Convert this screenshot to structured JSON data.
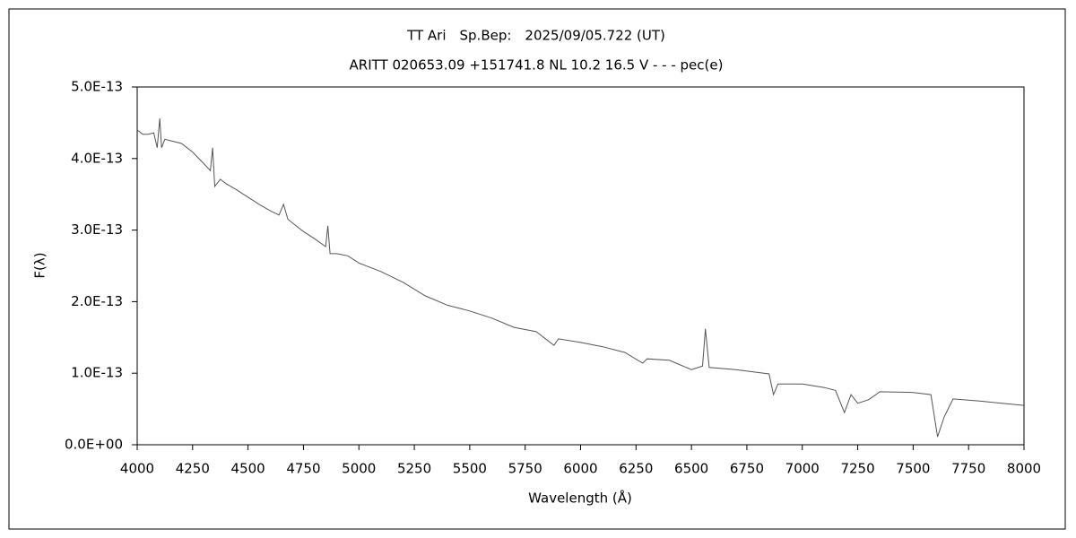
{
  "chart_data": {
    "type": "line",
    "title": "TT Ari　Sp.Bep:　2025/09/05.722 (UT)",
    "subtitle": "ARITT 020653.09 +151741.8 NL 10.2 16.5 V - - - pec(e)",
    "xlabel": "Wavelength (Å)",
    "ylabel": "F(λ)",
    "xlim": [
      4000,
      8000
    ],
    "xticks": [
      4000,
      4250,
      4500,
      4750,
      5000,
      5250,
      5500,
      5750,
      6000,
      6250,
      6500,
      6750,
      7000,
      7250,
      7500,
      7750,
      8000
    ],
    "ylim": [
      0,
      5e-13
    ],
    "yticks": [
      {
        "value": 0,
        "label": "0.0E+00"
      },
      {
        "value": 1e-13,
        "label": "1.0E-13"
      },
      {
        "value": 2e-13,
        "label": "2.0E-13"
      },
      {
        "value": 3e-13,
        "label": "3.0E-13"
      },
      {
        "value": 4e-13,
        "label": "4.0E-13"
      },
      {
        "value": 5e-13,
        "label": "5.0E-13"
      }
    ],
    "grid": false,
    "series": [
      {
        "color": "#555555",
        "x": [
          4000,
          4025,
          4050,
          4075,
          4090,
          4102,
          4110,
          4125,
          4150,
          4200,
          4250,
          4300,
          4330,
          4340,
          4350,
          4375,
          4400,
          4450,
          4500,
          4550,
          4600,
          4640,
          4660,
          4680,
          4750,
          4800,
          4850,
          4860,
          4870,
          4900,
          4950,
          5000,
          5100,
          5200,
          5300,
          5400,
          5500,
          5600,
          5700,
          5800,
          5880,
          5900,
          6000,
          6100,
          6200,
          6280,
          6300,
          6400,
          6500,
          6550,
          6563,
          6580,
          6700,
          6850,
          6870,
          6890,
          7000,
          7100,
          7150,
          7190,
          7220,
          7250,
          7300,
          7350,
          7500,
          7580,
          7610,
          7640,
          7680,
          7800,
          7900,
          8000
        ],
        "values": [
          4.4e-13,
          4.34e-13,
          4.34e-13,
          4.36e-13,
          4.15e-13,
          4.56e-13,
          4.15e-13,
          4.27e-13,
          4.25e-13,
          4.21e-13,
          4.09e-13,
          3.93e-13,
          3.83e-13,
          4.15e-13,
          3.61e-13,
          3.71e-13,
          3.65e-13,
          3.56e-13,
          3.46e-13,
          3.36e-13,
          3.27e-13,
          3.21e-13,
          3.36e-13,
          3.15e-13,
          2.98e-13,
          2.88e-13,
          2.77e-13,
          3.06e-13,
          2.67e-13,
          2.67e-13,
          2.64e-13,
          2.54e-13,
          2.42e-13,
          2.27e-13,
          2.08e-13,
          1.95e-13,
          1.87e-13,
          1.77e-13,
          1.64e-13,
          1.58e-13,
          1.39e-13,
          1.48e-13,
          1.43e-13,
          1.37e-13,
          1.29e-13,
          1.14e-13,
          1.2e-13,
          1.18e-13,
          1.05e-13,
          1.1e-13,
          1.62e-13,
          1.08e-13,
          1.05e-13,
          9.9e-14,
          7e-14,
          8.5e-14,
          8.5e-14,
          8e-14,
          7.6e-14,
          4.5e-14,
          7e-14,
          5.8e-14,
          6.3e-14,
          7.4e-14,
          7.3e-14,
          7e-14,
          1.1e-14,
          3.9e-14,
          6.4e-14,
          6.1e-14,
          5.8e-14,
          5.5e-14
        ]
      }
    ]
  }
}
